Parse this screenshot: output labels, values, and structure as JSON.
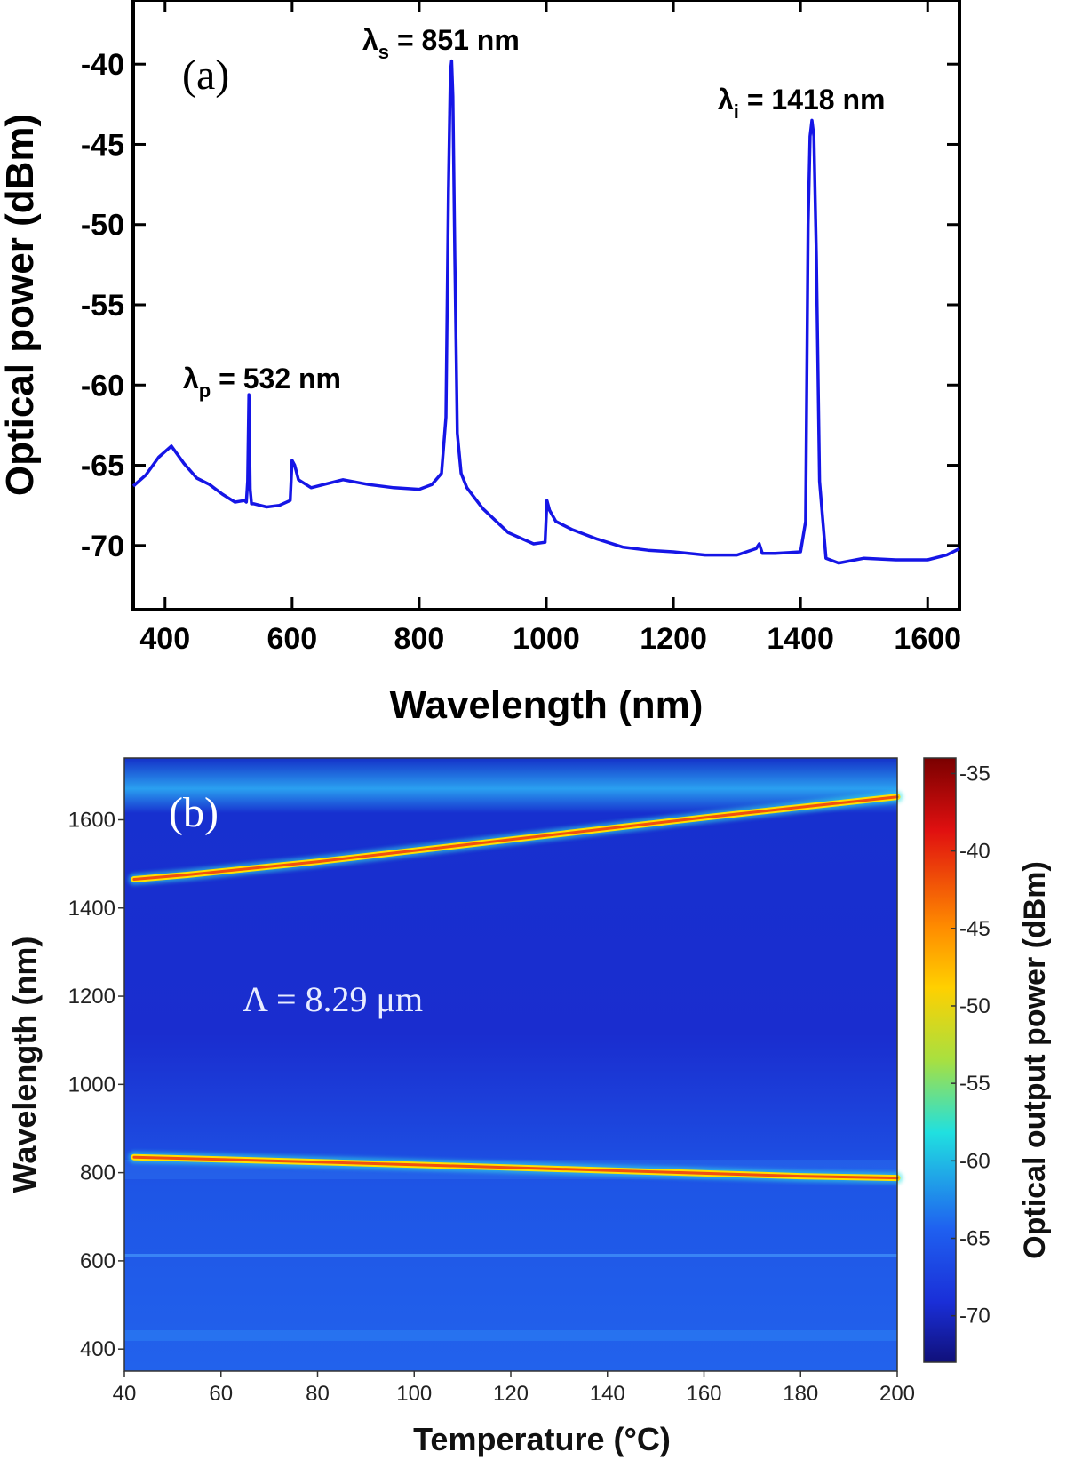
{
  "chart_data": [
    {
      "type": "line",
      "panel_label": "(a)",
      "xlabel": "Wavelength (nm)",
      "ylabel": "Optical power (dBm)",
      "xlim": [
        350,
        1650
      ],
      "ylim": [
        -74,
        -36
      ],
      "xticks": [
        400,
        600,
        800,
        1000,
        1200,
        1400,
        1600
      ],
      "yticks": [
        -40,
        -45,
        -50,
        -55,
        -60,
        -65,
        -70
      ],
      "line_color": "#1515e6",
      "annotations": [
        {
          "id": "pump",
          "symbol": "λ",
          "sub": "p",
          "text": " = 532 nm",
          "wavelength": 532
        },
        {
          "id": "signal",
          "symbol": "λ",
          "sub": "s",
          "text": " = 851 nm",
          "wavelength": 851
        },
        {
          "id": "idler",
          "symbol": "λ",
          "sub": "i",
          "text": " = 1418 nm",
          "wavelength": 1418
        }
      ],
      "series": [
        {
          "name": "spectrum",
          "x": [
            350,
            370,
            390,
            410,
            430,
            450,
            470,
            490,
            510,
            525,
            528,
            530,
            532,
            534,
            536,
            540,
            560,
            580,
            597,
            600,
            604,
            610,
            630,
            650,
            680,
            720,
            760,
            800,
            820,
            835,
            842,
            846,
            849,
            851,
            853,
            856,
            860,
            866,
            875,
            900,
            940,
            980,
            998,
            1001,
            1005,
            1015,
            1040,
            1080,
            1120,
            1160,
            1200,
            1250,
            1300,
            1330,
            1335,
            1340,
            1360,
            1400,
            1408,
            1412,
            1415,
            1418,
            1421,
            1425,
            1430,
            1440,
            1460,
            1500,
            1550,
            1600,
            1630,
            1650
          ],
          "y": [
            -66.3,
            -65.6,
            -64.5,
            -63.8,
            -64.9,
            -65.8,
            -66.2,
            -66.8,
            -67.3,
            -67.2,
            -67.3,
            -66.0,
            -60.6,
            -66.5,
            -67.4,
            -67.4,
            -67.6,
            -67.5,
            -67.2,
            -64.7,
            -65.0,
            -65.9,
            -66.4,
            -66.2,
            -65.9,
            -66.2,
            -66.4,
            -66.5,
            -66.2,
            -65.5,
            -62.0,
            -48.0,
            -40.5,
            -39.8,
            -42.0,
            -52.0,
            -63.0,
            -65.5,
            -66.4,
            -67.7,
            -69.2,
            -69.9,
            -69.8,
            -67.2,
            -67.8,
            -68.5,
            -69.0,
            -69.6,
            -70.1,
            -70.3,
            -70.4,
            -70.6,
            -70.6,
            -70.2,
            -69.9,
            -70.5,
            -70.5,
            -70.4,
            -68.5,
            -50.0,
            -44.5,
            -43.5,
            -44.5,
            -52.0,
            -66.0,
            -70.8,
            -71.1,
            -70.8,
            -70.9,
            -70.9,
            -70.6,
            -70.2
          ]
        }
      ]
    },
    {
      "type": "heatmap",
      "panel_label": "(b)",
      "xlabel": "Temperature (°C)",
      "ylabel": "Wavelength (nm)",
      "xlim": [
        40,
        200
      ],
      "ylim": [
        350,
        1740
      ],
      "xticks": [
        40,
        60,
        80,
        100,
        120,
        140,
        160,
        180,
        200
      ],
      "yticks": [
        400,
        600,
        800,
        1000,
        1200,
        1400,
        1600
      ],
      "annotation": "Λ = 8.29 μm",
      "colorbar": {
        "label": "Optical output power (dBm)",
        "range": [
          -73,
          -34
        ],
        "ticks": [
          -35,
          -40,
          -45,
          -50,
          -55,
          -60,
          -65,
          -70
        ],
        "stops": [
          {
            "offset": 0,
            "color": "#7a0000"
          },
          {
            "offset": 0.12,
            "color": "#e01010"
          },
          {
            "offset": 0.28,
            "color": "#ff8c00"
          },
          {
            "offset": 0.38,
            "color": "#ffd000"
          },
          {
            "offset": 0.5,
            "color": "#a8e040"
          },
          {
            "offset": 0.62,
            "color": "#20e0e0"
          },
          {
            "offset": 0.78,
            "color": "#1f60f0"
          },
          {
            "offset": 0.9,
            "color": "#1a2fd8"
          },
          {
            "offset": 1,
            "color": "#10107a"
          }
        ]
      },
      "background_color": "#1a33d9",
      "lines": [
        {
          "name": "idler",
          "temperature": [
            42,
            53,
            80,
            120,
            160,
            200
          ],
          "wavelength": [
            1465,
            1475,
            1505,
            1555,
            1605,
            1652
          ]
        },
        {
          "name": "signal",
          "temperature": [
            42,
            60,
            100,
            140,
            180,
            200
          ],
          "wavelength": [
            835,
            830,
            818,
            805,
            792,
            788
          ]
        }
      ]
    }
  ]
}
